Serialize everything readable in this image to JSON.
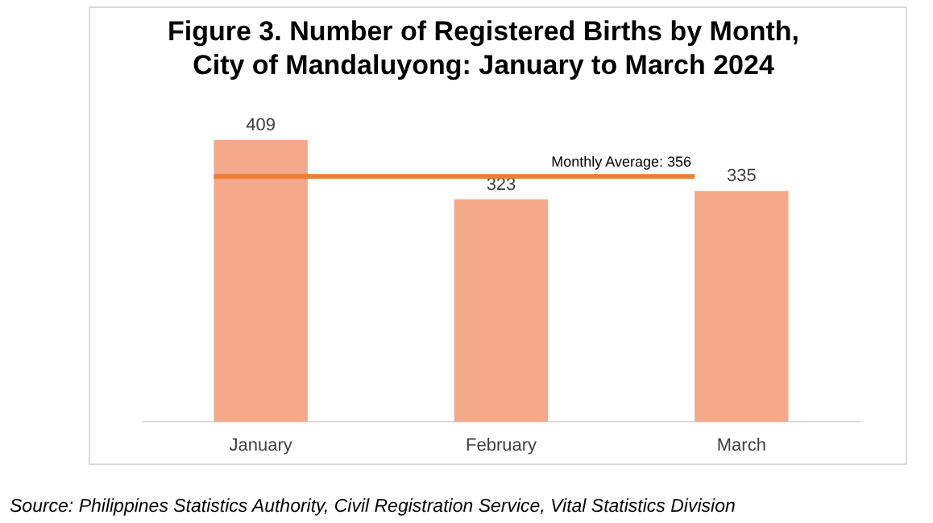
{
  "chart_data": {
    "type": "bar",
    "title": "Figure 3. Number of Registered Births by Month,\nCity of Mandaluyong: January to March 2024",
    "categories": [
      "January",
      "February",
      "March"
    ],
    "values": [
      409,
      323,
      335
    ],
    "color": "#f4a98a",
    "data_labels": true,
    "ref_lines": [
      {
        "axis": "y",
        "value": 356,
        "label": "Monthly Average: 356",
        "color": "#ed7d31"
      }
    ],
    "annotations": [
      "Source: Philippines Statistics Authority, Civil Registration Service, Vital Statistics Division"
    ]
  }
}
